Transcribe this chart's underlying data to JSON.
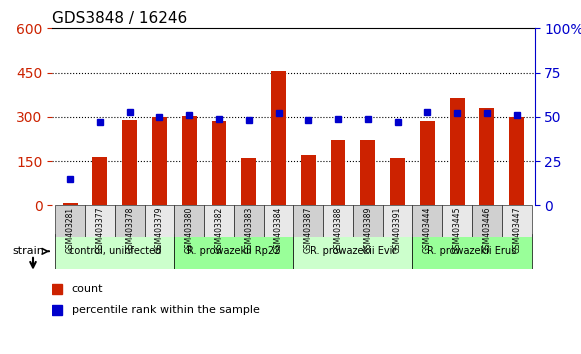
{
  "title": "GDS3848 / 16246",
  "samples": [
    "GSM403281",
    "GSM403377",
    "GSM403378",
    "GSM403379",
    "GSM403380",
    "GSM403382",
    "GSM403383",
    "GSM403384",
    "GSM403387",
    "GSM403388",
    "GSM403389",
    "GSM403391",
    "GSM403444",
    "GSM403445",
    "GSM403446",
    "GSM403447"
  ],
  "counts": [
    8,
    165,
    290,
    300,
    302,
    285,
    162,
    455,
    170,
    222,
    220,
    160,
    285,
    365,
    330,
    298
  ],
  "percentiles": [
    15,
    47,
    53,
    50,
    51,
    49,
    48,
    52,
    48,
    49,
    49,
    47,
    53,
    52,
    52,
    51
  ],
  "groups": [
    {
      "label": "control, uninfected",
      "start": 0,
      "end": 4,
      "color": "#ccffcc"
    },
    {
      "label": "R. prowazekii Rp22",
      "start": 4,
      "end": 8,
      "color": "#99ff99"
    },
    {
      "label": "R. prowazekii Evir",
      "start": 8,
      "end": 12,
      "color": "#ccffcc"
    },
    {
      "label": "R. prowazekii Erus",
      "start": 12,
      "end": 16,
      "color": "#99ff99"
    }
  ],
  "bar_color": "#cc2200",
  "dot_color": "#0000cc",
  "left_ylim": [
    0,
    600
  ],
  "right_ylim": [
    0,
    100
  ],
  "left_yticks": [
    0,
    150,
    300,
    450,
    600
  ],
  "right_yticks": [
    0,
    25,
    50,
    75,
    100
  ],
  "grid_color": "#000000",
  "background_color": "#ffffff",
  "bar_width": 0.5
}
